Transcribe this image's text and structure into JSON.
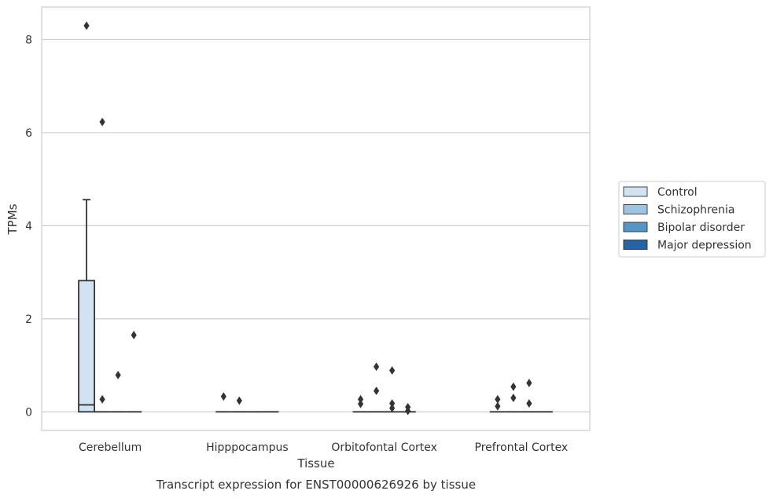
{
  "chart_data": {
    "type": "box",
    "title": "",
    "caption": "Transcript expression for ENST00000626926 by tissue",
    "xlabel": "Tissue",
    "ylabel": "TPMs",
    "ylim": [
      -0.4,
      8.7
    ],
    "yticks": [
      0,
      2,
      4,
      6,
      8
    ],
    "grid": "horizontal",
    "legend_position": "right",
    "categories": [
      "Cerebellum",
      "Hipppocampus",
      "Orbitofontal Cortex",
      "Prefrontal Cortex"
    ],
    "series": [
      {
        "name": "Control",
        "color": "#d1e2f2",
        "boxes": [
          {
            "q1": 0,
            "median": 0.15,
            "q3": 2.82,
            "whisker_low": 0,
            "whisker_high": 4.56,
            "outliers": [
              8.3
            ]
          },
          {
            "q1": 0,
            "median": 0,
            "q3": 0,
            "whisker_low": 0,
            "whisker_high": 0,
            "outliers": [
              0.33
            ]
          },
          {
            "q1": 0,
            "median": 0,
            "q3": 0,
            "whisker_low": 0,
            "whisker_high": 0,
            "outliers": [
              0.17,
              0.27
            ]
          },
          {
            "q1": 0,
            "median": 0,
            "q3": 0,
            "whisker_low": 0,
            "whisker_high": 0,
            "outliers": [
              0.12,
              0.27
            ]
          }
        ]
      },
      {
        "name": "Schizophrenia",
        "color": "#9bc5e0",
        "boxes": [
          {
            "q1": 0,
            "median": 0,
            "q3": 0,
            "whisker_low": 0,
            "whisker_high": 0,
            "outliers": [
              0.27,
              6.23
            ]
          },
          {
            "q1": 0,
            "median": 0,
            "q3": 0,
            "whisker_low": 0,
            "whisker_high": 0,
            "outliers": [
              0.24
            ]
          },
          {
            "q1": 0,
            "median": 0,
            "q3": 0,
            "whisker_low": 0,
            "whisker_high": 0,
            "outliers": [
              0.45,
              0.97
            ]
          },
          {
            "q1": 0,
            "median": 0,
            "q3": 0,
            "whisker_low": 0,
            "whisker_high": 0,
            "outliers": [
              0.3,
              0.54
            ]
          }
        ]
      },
      {
        "name": "Bipolar disorder",
        "color": "#5696c6",
        "boxes": [
          {
            "q1": 0,
            "median": 0,
            "q3": 0,
            "whisker_low": 0,
            "whisker_high": 0,
            "outliers": [
              0.79
            ]
          },
          {
            "q1": 0,
            "median": 0,
            "q3": 0,
            "whisker_low": 0,
            "whisker_high": 0,
            "outliers": []
          },
          {
            "q1": 0,
            "median": 0,
            "q3": 0,
            "whisker_low": 0,
            "whisker_high": 0,
            "outliers": [
              0.08,
              0.18,
              0.89
            ]
          },
          {
            "q1": 0,
            "median": 0,
            "q3": 0,
            "whisker_low": 0,
            "whisker_high": 0,
            "outliers": [
              0.18,
              0.62
            ]
          }
        ]
      },
      {
        "name": "Major depression",
        "color": "#2565a6",
        "boxes": [
          {
            "q1": 0,
            "median": 0,
            "q3": 0,
            "whisker_low": 0,
            "whisker_high": 0,
            "outliers": [
              1.65
            ]
          },
          {
            "q1": 0,
            "median": 0,
            "q3": 0,
            "whisker_low": 0,
            "whisker_high": 0,
            "outliers": []
          },
          {
            "q1": 0,
            "median": 0,
            "q3": 0,
            "whisker_low": 0,
            "whisker_high": 0,
            "outliers": [
              0.02,
              0.1
            ]
          },
          {
            "q1": 0,
            "median": 0,
            "q3": 0,
            "whisker_low": 0,
            "whisker_high": 0,
            "outliers": []
          }
        ]
      }
    ]
  }
}
